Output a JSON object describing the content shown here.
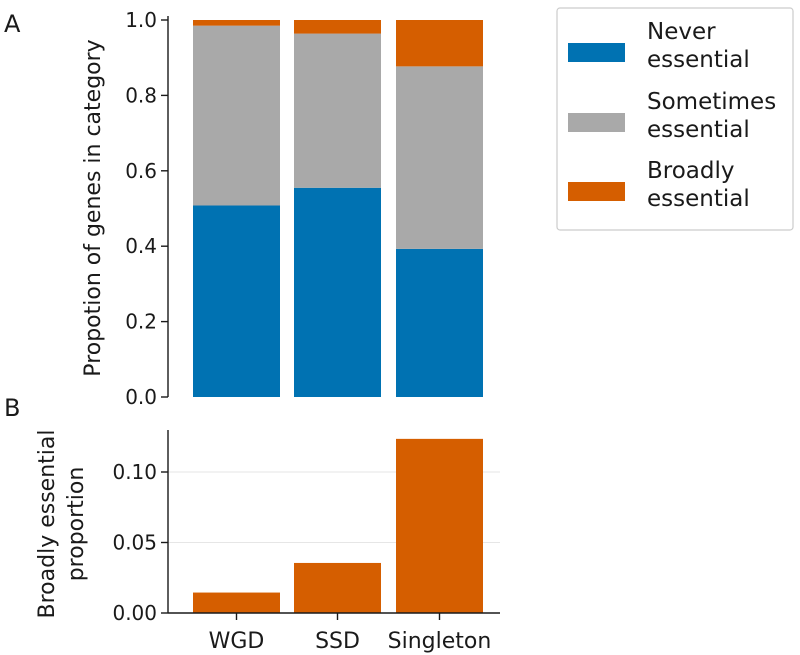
{
  "chart_data": [
    {
      "panel": "A",
      "type": "bar",
      "stacked": true,
      "categories": [
        "WGD",
        "SSD",
        "Singleton"
      ],
      "series": [
        {
          "name": "Never essential",
          "color": "#0072b2",
          "values": [
            0.508,
            0.555,
            0.393
          ]
        },
        {
          "name": "Sometimes essential",
          "color": "#a9a9a9",
          "values": [
            0.477,
            0.409,
            0.484
          ]
        },
        {
          "name": "Broadly essential",
          "color": "#d55e00",
          "values": [
            0.015,
            0.036,
            0.123
          ]
        }
      ],
      "ylabel": "Propotion of genes in category",
      "ylim": [
        0,
        1.0
      ],
      "yticks": [
        "0.0",
        "0.2",
        "0.4",
        "0.6",
        "0.8",
        "1.0"
      ],
      "legend": {
        "placement": "right",
        "entries": [
          {
            "lines": [
              "Never",
              "essential"
            ],
            "color": "#0072b2"
          },
          {
            "lines": [
              "Sometimes",
              "essential"
            ],
            "color": "#a9a9a9"
          },
          {
            "lines": [
              "Broadly",
              "essential"
            ],
            "color": "#d55e00"
          }
        ]
      }
    },
    {
      "panel": "B",
      "type": "bar",
      "categories": [
        "WGD",
        "SSD",
        "Singleton"
      ],
      "values": [
        0.0145,
        0.0355,
        0.1235
      ],
      "color": "#d55e00",
      "ylabel_lines": [
        "Broadly essential",
        "proportion"
      ],
      "ylim": [
        0,
        0.13
      ],
      "yticks": [
        "0.00",
        "0.05",
        "0.10"
      ],
      "grid": true
    }
  ]
}
